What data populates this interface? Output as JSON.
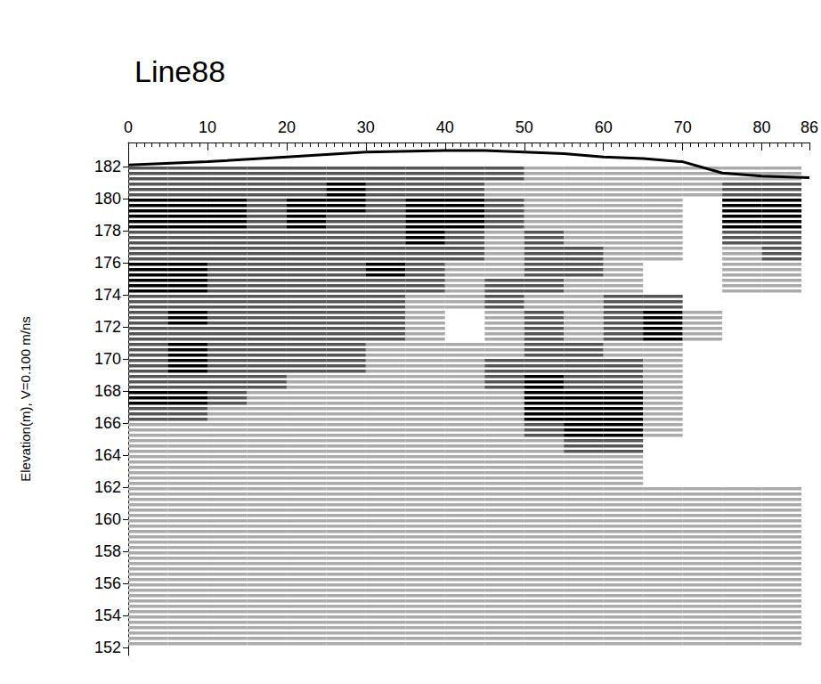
{
  "chart_data": {
    "type": "heatmap",
    "title": "Line88",
    "y_label": "Elevation(m), V=0.100 m/ns",
    "xlim": [
      0,
      86
    ],
    "xticks": [
      0,
      10,
      20,
      30,
      40,
      50,
      60,
      70,
      80
    ],
    "ylim": [
      151.5,
      183.5
    ],
    "yticks": [
      152,
      154,
      156,
      158,
      160,
      162,
      164,
      166,
      168,
      170,
      172,
      174,
      176,
      178,
      180,
      182
    ],
    "grid": false,
    "heatmap": {
      "x_bins": [
        0,
        5,
        10,
        15,
        20,
        25,
        30,
        35,
        40,
        45,
        50,
        55,
        60,
        65,
        70,
        75,
        80,
        85
      ],
      "y_bins": [
        152,
        153,
        154,
        155,
        156,
        157,
        158,
        159,
        160,
        161,
        162,
        163,
        164,
        165,
        166,
        167,
        168,
        169,
        170,
        171,
        172,
        173,
        174,
        175,
        176,
        177,
        178,
        179,
        180,
        181,
        182,
        183
      ],
      "range": [
        0,
        3
      ],
      "values": [
        [
          1,
          1,
          1,
          1,
          1,
          1,
          1,
          1,
          1,
          1,
          1,
          1,
          1,
          1,
          1,
          1,
          1
        ],
        [
          1,
          1,
          1,
          1,
          1,
          1,
          1,
          1,
          1,
          1,
          1,
          1,
          1,
          1,
          1,
          1,
          1
        ],
        [
          1,
          1,
          1,
          1,
          1,
          1,
          1,
          1,
          1,
          1,
          1,
          1,
          1,
          1,
          1,
          1,
          1
        ],
        [
          1,
          1,
          1,
          1,
          1,
          1,
          1,
          1,
          1,
          1,
          1,
          1,
          1,
          1,
          1,
          1,
          1
        ],
        [
          1,
          1,
          1,
          1,
          1,
          1,
          1,
          1,
          1,
          1,
          1,
          1,
          1,
          1,
          1,
          1,
          1
        ],
        [
          1,
          1,
          1,
          1,
          1,
          1,
          1,
          1,
          1,
          1,
          1,
          1,
          1,
          1,
          1,
          1,
          1
        ],
        [
          1,
          1,
          1,
          1,
          1,
          1,
          1,
          1,
          1,
          1,
          1,
          1,
          1,
          1,
          1,
          1,
          1
        ],
        [
          1,
          1,
          1,
          1,
          1,
          1,
          1,
          1,
          1,
          1,
          1,
          1,
          1,
          1,
          1,
          1,
          1
        ],
        [
          1,
          1,
          1,
          1,
          1,
          1,
          1,
          1,
          1,
          1,
          1,
          1,
          1,
          1,
          1,
          1,
          1
        ],
        [
          1,
          1,
          1,
          1,
          1,
          1,
          1,
          1,
          1,
          1,
          1,
          1,
          1,
          1,
          1,
          1,
          1
        ],
        [
          1,
          1,
          1,
          1,
          1,
          1,
          1,
          1,
          1,
          1,
          1,
          1,
          1,
          0,
          0,
          0,
          0
        ],
        [
          1,
          1,
          1,
          1,
          1,
          1,
          1,
          1,
          1,
          1,
          1,
          1,
          1,
          0,
          0,
          0,
          0
        ],
        [
          1,
          1,
          1,
          1,
          1,
          1,
          1,
          1,
          1,
          1,
          1,
          2,
          2,
          0,
          0,
          0,
          0
        ],
        [
          1,
          1,
          1,
          1,
          1,
          1,
          1,
          1,
          1,
          1,
          2,
          3,
          3,
          1,
          0,
          0,
          0
        ],
        [
          2,
          2,
          1,
          1,
          1,
          1,
          1,
          1,
          1,
          1,
          3,
          3,
          3,
          1,
          0,
          0,
          0
        ],
        [
          3,
          3,
          2,
          1,
          1,
          1,
          1,
          1,
          1,
          1,
          3,
          3,
          3,
          1,
          0,
          0,
          0
        ],
        [
          2,
          2,
          2,
          2,
          1,
          1,
          1,
          1,
          1,
          2,
          3,
          2,
          2,
          1,
          0,
          0,
          0
        ],
        [
          2,
          3,
          2,
          2,
          2,
          2,
          1,
          1,
          1,
          2,
          2,
          2,
          2,
          1,
          0,
          0,
          0
        ],
        [
          2,
          3,
          2,
          2,
          2,
          2,
          1,
          1,
          1,
          1,
          2,
          2,
          1,
          1,
          0,
          0,
          0
        ],
        [
          2,
          2,
          2,
          2,
          2,
          2,
          2,
          1,
          0,
          1,
          2,
          1,
          2,
          3,
          1,
          0,
          0
        ],
        [
          2,
          3,
          2,
          2,
          2,
          2,
          2,
          1,
          0,
          1,
          2,
          1,
          2,
          3,
          1,
          0,
          0
        ],
        [
          2,
          2,
          2,
          2,
          2,
          2,
          2,
          1,
          1,
          2,
          1,
          1,
          2,
          2,
          0,
          0,
          0
        ],
        [
          3,
          3,
          2,
          2,
          2,
          2,
          2,
          2,
          1,
          2,
          2,
          1,
          1,
          0,
          0,
          1,
          1
        ],
        [
          3,
          3,
          2,
          2,
          2,
          2,
          3,
          2,
          1,
          1,
          2,
          2,
          1,
          0,
          0,
          1,
          1
        ],
        [
          2,
          2,
          2,
          2,
          2,
          2,
          2,
          2,
          2,
          1,
          2,
          2,
          1,
          1,
          0,
          1,
          2
        ],
        [
          2,
          2,
          2,
          2,
          2,
          2,
          2,
          3,
          2,
          1,
          2,
          1,
          1,
          1,
          0,
          2,
          2
        ],
        [
          3,
          3,
          3,
          2,
          3,
          2,
          2,
          3,
          3,
          2,
          1,
          1,
          1,
          1,
          0,
          3,
          3
        ],
        [
          3,
          3,
          3,
          2,
          3,
          3,
          2,
          3,
          3,
          2,
          1,
          1,
          1,
          1,
          0,
          3,
          3
        ],
        [
          2,
          2,
          2,
          2,
          2,
          3,
          2,
          2,
          2,
          1,
          1,
          1,
          1,
          1,
          1,
          2,
          2
        ],
        [
          2,
          2,
          2,
          2,
          2,
          2,
          2,
          2,
          2,
          2,
          1,
          1,
          1,
          1,
          1,
          1,
          1
        ],
        [
          0,
          0,
          0,
          0,
          0,
          0,
          0,
          0,
          0,
          0,
          0,
          0,
          0,
          0,
          0,
          0,
          0
        ]
      ]
    },
    "series": [
      {
        "type": "line",
        "color": "#000000",
        "line_style": "solid",
        "x": [
          0,
          10,
          20,
          30,
          40,
          45,
          50,
          55,
          60,
          65,
          70,
          75,
          80,
          86
        ],
        "values": [
          182.1,
          182.3,
          182.6,
          182.9,
          183,
          183,
          182.9,
          182.8,
          182.6,
          182.5,
          182.3,
          181.6,
          181.4,
          181.3
        ]
      }
    ]
  }
}
